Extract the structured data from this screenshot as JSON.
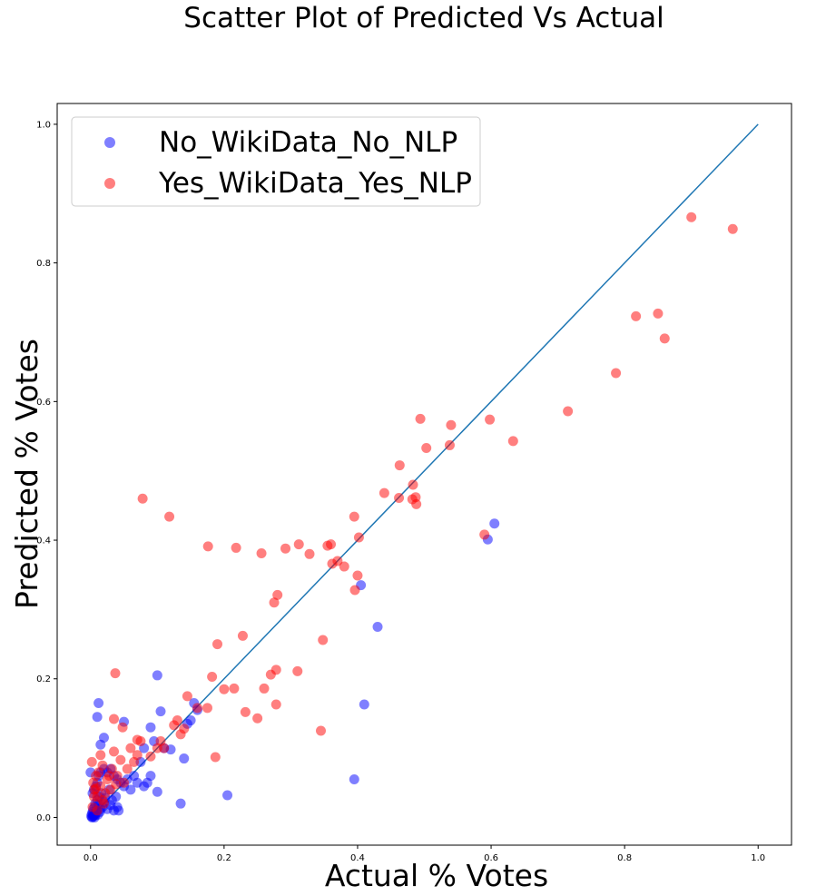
{
  "chart_data": {
    "type": "scatter",
    "title": "Scatter Plot of Predicted Vs Actual",
    "xlabel": "Actual % Votes",
    "ylabel": "Predicted % Votes",
    "xlim": [
      -0.05,
      1.05
    ],
    "ylim": [
      -0.04,
      1.03
    ],
    "xticks": [
      0.0,
      0.2,
      0.4,
      0.6,
      0.8,
      1.0
    ],
    "yticks": [
      0.0,
      0.2,
      0.4,
      0.6,
      0.8,
      1.0
    ],
    "xtick_labels": [
      "0.0",
      "0.2",
      "0.4",
      "0.6",
      "0.8",
      "1.0"
    ],
    "ytick_labels": [
      "0.0",
      "0.2",
      "0.4",
      "0.6",
      "0.8",
      "1.0"
    ],
    "grid": false,
    "legend_position": "upper-left",
    "reference_line": {
      "x": [
        0,
        1
      ],
      "y": [
        0,
        1
      ],
      "color": "#1f77b4"
    },
    "series": [
      {
        "name": "No_WikiData_No_NLP",
        "color": "#0000ff",
        "points": [
          [
            0.001,
            0.002
          ],
          [
            0.002,
            0.005
          ],
          [
            0.003,
            0.008
          ],
          [
            0.004,
            0.012
          ],
          [
            0.005,
            0.003
          ],
          [
            0.006,
            0.015
          ],
          [
            0.007,
            0.02
          ],
          [
            0.008,
            0.006
          ],
          [
            0.009,
            0.01
          ],
          [
            0.01,
            0.025
          ],
          [
            0.011,
            0.004
          ],
          [
            0.012,
            0.018
          ],
          [
            0.013,
            0.03
          ],
          [
            0.014,
            0.008
          ],
          [
            0.015,
            0.012
          ],
          [
            0.016,
            0.035
          ],
          [
            0.018,
            0.015
          ],
          [
            0.02,
            0.022
          ],
          [
            0.022,
            0.028
          ],
          [
            0.025,
            0.012
          ],
          [
            0.028,
            0.04
          ],
          [
            0.03,
            0.018
          ],
          [
            0.032,
            0.025
          ],
          [
            0.035,
            0.01
          ],
          [
            0.038,
            0.03
          ],
          [
            0.04,
            0.015
          ],
          [
            0.042,
            0.01
          ],
          [
            0.045,
            0.05
          ],
          [
            0.05,
            0.045
          ],
          [
            0.055,
            0.055
          ],
          [
            0.06,
            0.04
          ],
          [
            0.065,
            0.06
          ],
          [
            0.07,
            0.05
          ],
          [
            0.075,
            0.08
          ],
          [
            0.08,
            0.045
          ],
          [
            0.085,
            0.05
          ],
          [
            0.09,
            0.06
          ],
          [
            0.003,
            0.035
          ],
          [
            0.005,
            0.04
          ],
          [
            0.008,
            0.045
          ],
          [
            0.01,
            0.05
          ],
          [
            0.012,
            0.06
          ],
          [
            0.015,
            0.065
          ],
          [
            0.02,
            0.07
          ],
          [
            0.025,
            0.065
          ],
          [
            0.03,
            0.07
          ],
          [
            0.035,
            0.06
          ],
          [
            0.04,
            0.055
          ],
          [
            0.0,
            0.065
          ],
          [
            0.01,
            0.145
          ],
          [
            0.012,
            0.165
          ],
          [
            0.015,
            0.105
          ],
          [
            0.02,
            0.115
          ],
          [
            0.05,
            0.138
          ],
          [
            0.08,
            0.1
          ],
          [
            0.09,
            0.13
          ],
          [
            0.095,
            0.11
          ],
          [
            0.1,
            0.205
          ],
          [
            0.105,
            0.153
          ],
          [
            0.11,
            0.1
          ],
          [
            0.12,
            0.098
          ],
          [
            0.135,
            0.02
          ],
          [
            0.14,
            0.085
          ],
          [
            0.145,
            0.135
          ],
          [
            0.15,
            0.14
          ],
          [
            0.155,
            0.165
          ],
          [
            0.16,
            0.155
          ],
          [
            0.1,
            0.037
          ],
          [
            0.205,
            0.032
          ],
          [
            0.395,
            0.055
          ],
          [
            0.405,
            0.335
          ],
          [
            0.41,
            0.163
          ],
          [
            0.43,
            0.275
          ],
          [
            0.595,
            0.401
          ],
          [
            0.605,
            0.424
          ],
          [
            0.002,
            0.0
          ],
          [
            0.004,
            0.002
          ],
          [
            0.006,
            0.0
          ],
          [
            0.003,
            0.001
          ],
          [
            0.007,
            0.003
          ]
        ]
      },
      {
        "name": "Yes_WikiData_Yes_NLP",
        "color": "#ff0000",
        "points": [
          [
            0.002,
            0.08
          ],
          [
            0.004,
            0.05
          ],
          [
            0.006,
            0.04
          ],
          [
            0.008,
            0.06
          ],
          [
            0.01,
            0.03
          ],
          [
            0.012,
            0.065
          ],
          [
            0.015,
            0.045
          ],
          [
            0.018,
            0.075
          ],
          [
            0.02,
            0.02
          ],
          [
            0.022,
            0.035
          ],
          [
            0.025,
            0.055
          ],
          [
            0.028,
            0.06
          ],
          [
            0.03,
            0.04
          ],
          [
            0.032,
            0.07
          ],
          [
            0.035,
            0.095
          ],
          [
            0.038,
            0.048
          ],
          [
            0.04,
            0.06
          ],
          [
            0.045,
            0.083
          ],
          [
            0.05,
            0.05
          ],
          [
            0.055,
            0.07
          ],
          [
            0.06,
            0.1
          ],
          [
            0.065,
            0.08
          ],
          [
            0.07,
            0.09
          ],
          [
            0.075,
            0.11
          ],
          [
            0.035,
            0.142
          ],
          [
            0.015,
            0.09
          ],
          [
            0.005,
            0.03
          ],
          [
            0.01,
            0.01
          ],
          [
            0.003,
            0.015
          ],
          [
            0.018,
            0.025
          ],
          [
            0.037,
            0.208
          ],
          [
            0.048,
            0.13
          ],
          [
            0.07,
            0.112
          ],
          [
            0.078,
            0.46
          ],
          [
            0.09,
            0.088
          ],
          [
            0.1,
            0.1
          ],
          [
            0.105,
            0.11
          ],
          [
            0.11,
            0.1
          ],
          [
            0.118,
            0.434
          ],
          [
            0.125,
            0.133
          ],
          [
            0.13,
            0.14
          ],
          [
            0.135,
            0.12
          ],
          [
            0.14,
            0.128
          ],
          [
            0.145,
            0.175
          ],
          [
            0.16,
            0.158
          ],
          [
            0.175,
            0.158
          ],
          [
            0.176,
            0.391
          ],
          [
            0.182,
            0.203
          ],
          [
            0.187,
            0.087
          ],
          [
            0.19,
            0.25
          ],
          [
            0.2,
            0.185
          ],
          [
            0.215,
            0.186
          ],
          [
            0.218,
            0.389
          ],
          [
            0.228,
            0.262
          ],
          [
            0.232,
            0.152
          ],
          [
            0.25,
            0.143
          ],
          [
            0.256,
            0.381
          ],
          [
            0.26,
            0.186
          ],
          [
            0.27,
            0.206
          ],
          [
            0.275,
            0.31
          ],
          [
            0.278,
            0.213
          ],
          [
            0.278,
            0.163
          ],
          [
            0.28,
            0.321
          ],
          [
            0.292,
            0.388
          ],
          [
            0.31,
            0.211
          ],
          [
            0.312,
            0.394
          ],
          [
            0.328,
            0.38
          ],
          [
            0.345,
            0.125
          ],
          [
            0.348,
            0.256
          ],
          [
            0.355,
            0.392
          ],
          [
            0.36,
            0.394
          ],
          [
            0.362,
            0.366
          ],
          [
            0.37,
            0.37
          ],
          [
            0.38,
            0.362
          ],
          [
            0.395,
            0.434
          ],
          [
            0.396,
            0.328
          ],
          [
            0.4,
            0.349
          ],
          [
            0.402,
            0.404
          ],
          [
            0.44,
            0.468
          ],
          [
            0.462,
            0.461
          ],
          [
            0.463,
            0.508
          ],
          [
            0.482,
            0.459
          ],
          [
            0.483,
            0.48
          ],
          [
            0.487,
            0.462
          ],
          [
            0.488,
            0.452
          ],
          [
            0.494,
            0.575
          ],
          [
            0.503,
            0.533
          ],
          [
            0.538,
            0.537
          ],
          [
            0.54,
            0.566
          ],
          [
            0.59,
            0.408
          ],
          [
            0.598,
            0.574
          ],
          [
            0.633,
            0.543
          ],
          [
            0.715,
            0.586
          ],
          [
            0.787,
            0.641
          ],
          [
            0.817,
            0.723
          ],
          [
            0.85,
            0.727
          ],
          [
            0.86,
            0.691
          ],
          [
            0.9,
            0.866
          ],
          [
            0.962,
            0.849
          ],
          [
            0.008,
            0.042
          ]
        ]
      }
    ]
  }
}
